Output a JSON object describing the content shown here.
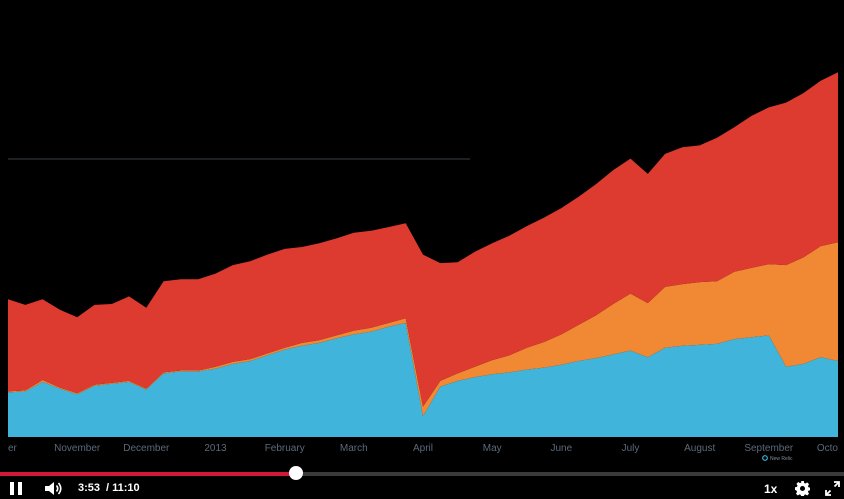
{
  "player": {
    "current_time": "3:53",
    "duration": "/ 11:10",
    "progress_fraction": 0.351,
    "speed_label": "1x",
    "icons": {
      "pause": "pause-icon",
      "volume": "volume-icon",
      "settings": "gear-icon",
      "fullscreen": "fullscreen-icon"
    },
    "colors": {
      "played": "#d01a38",
      "track": "#3b3b3b",
      "knob": "#ffffff"
    }
  },
  "chart_data": {
    "type": "area",
    "stacked": true,
    "x_labels": [
      "er",
      "November",
      "December",
      "2013",
      "February",
      "March",
      "April",
      "May",
      "June",
      "July",
      "August",
      "September",
      "Octo"
    ],
    "series": [
      {
        "color": "#40b4da",
        "values": [
          47,
          48,
          58,
          51,
          45,
          54,
          56,
          58,
          50,
          67,
          69,
          69,
          72,
          77,
          80,
          86,
          92,
          96,
          99,
          104,
          108,
          111,
          116,
          120,
          22,
          53,
          59,
          63,
          66,
          68,
          71,
          73,
          76,
          80,
          83,
          87,
          91,
          84,
          94,
          96,
          97,
          98,
          103,
          105,
          107,
          74,
          77,
          84,
          80
        ]
      },
      {
        "color": "#f08834",
        "values": [
          1,
          1,
          2,
          1,
          1,
          1,
          1,
          1,
          1,
          1,
          1,
          1,
          2,
          2,
          2,
          2,
          2,
          3,
          3,
          3,
          4,
          4,
          4,
          5,
          10,
          6,
          8,
          11,
          15,
          18,
          23,
          27,
          32,
          38,
          45,
          53,
          60,
          57,
          64,
          65,
          66,
          66,
          71,
          73,
          75,
          107,
          112,
          117,
          125
        ]
      },
      {
        "color": "#dd3a30",
        "values": [
          97,
          90,
          85,
          82,
          80,
          84,
          83,
          89,
          85,
          96,
          96,
          96,
          98,
          102,
          103,
          104,
          104,
          101,
          102,
          102,
          103,
          102,
          101,
          100,
          160,
          124,
          117,
          121,
          123,
          126,
          128,
          131,
          133,
          135,
          138,
          141,
          142,
          136,
          140,
          144,
          144,
          151,
          152,
          160,
          165,
          171,
          173,
          174,
          179
        ]
      }
    ],
    "legend": "New Relic",
    "legend_position": "bottom-right",
    "ylim": [
      0,
      460
    ],
    "grid": false
  }
}
